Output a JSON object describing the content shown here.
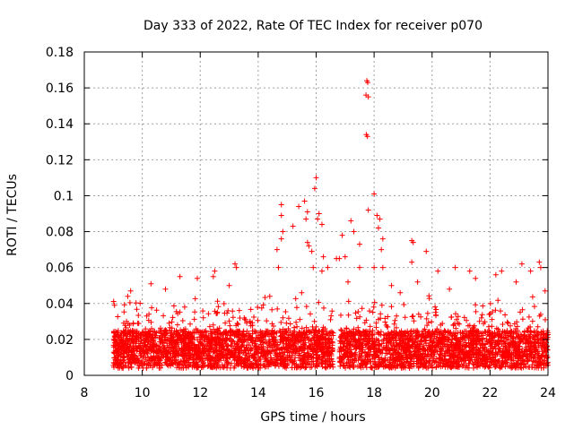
{
  "chart_data": {
    "type": "scatter",
    "title": "Day 333 of 2022, Rate Of TEC Index for receiver p070",
    "xlabel": "GPS time / hours",
    "ylabel": "ROTI / TECUs",
    "xlim": [
      8,
      24
    ],
    "ylim": [
      0,
      0.18
    ],
    "xticks": [
      "8",
      "10",
      "12",
      "14",
      "16",
      "18",
      "20",
      "22",
      "24"
    ],
    "yticks": [
      "0",
      "0.02",
      "0.04",
      "0.06",
      "0.08",
      "0.1",
      "0.12",
      "0.14",
      "0.16",
      "0.18"
    ],
    "grid": true,
    "marker": "+",
    "color": "#ff0000",
    "series": [
      {
        "name": "ROTI p070",
        "points": [
          [
            17.75,
            0.164
          ],
          [
            17.78,
            0.163
          ],
          [
            17.72,
            0.156
          ],
          [
            17.8,
            0.155
          ],
          [
            17.73,
            0.134
          ],
          [
            17.77,
            0.133
          ],
          [
            16.0,
            0.11
          ],
          [
            15.95,
            0.104
          ],
          [
            18.0,
            0.101
          ],
          [
            14.8,
            0.095
          ],
          [
            15.6,
            0.097
          ],
          [
            17.8,
            0.092
          ],
          [
            15.4,
            0.094
          ],
          [
            15.7,
            0.091
          ],
          [
            14.8,
            0.089
          ],
          [
            16.1,
            0.09
          ],
          [
            15.65,
            0.087
          ],
          [
            16.2,
            0.084
          ],
          [
            18.1,
            0.089
          ],
          [
            18.2,
            0.087
          ],
          [
            17.2,
            0.086
          ],
          [
            18.15,
            0.082
          ],
          [
            15.2,
            0.083
          ],
          [
            17.3,
            0.08
          ],
          [
            16.05,
            0.087
          ],
          [
            14.85,
            0.08
          ],
          [
            18.3,
            0.076
          ],
          [
            19.3,
            0.075
          ],
          [
            19.35,
            0.074
          ],
          [
            16.9,
            0.078
          ],
          [
            15.7,
            0.074
          ],
          [
            15.75,
            0.072
          ],
          [
            14.8,
            0.076
          ],
          [
            14.65,
            0.07
          ],
          [
            17.5,
            0.073
          ],
          [
            18.25,
            0.07
          ],
          [
            15.85,
            0.069
          ],
          [
            16.25,
            0.066
          ],
          [
            19.8,
            0.069
          ],
          [
            17.0,
            0.066
          ],
          [
            16.8,
            0.065
          ],
          [
            16.7,
            0.065
          ],
          [
            17.5,
            0.06
          ],
          [
            18.3,
            0.06
          ],
          [
            13.2,
            0.062
          ],
          [
            13.25,
            0.06
          ],
          [
            23.1,
            0.062
          ],
          [
            23.7,
            0.063
          ],
          [
            23.75,
            0.06
          ],
          [
            15.9,
            0.06
          ],
          [
            16.2,
            0.058
          ],
          [
            16.4,
            0.06
          ],
          [
            14.7,
            0.06
          ],
          [
            19.3,
            0.063
          ],
          [
            22.4,
            0.058
          ],
          [
            20.8,
            0.06
          ],
          [
            21.3,
            0.058
          ],
          [
            12.5,
            0.058
          ],
          [
            12.45,
            0.055
          ],
          [
            11.3,
            0.055
          ],
          [
            10.3,
            0.051
          ],
          [
            11.9,
            0.054
          ],
          [
            13.0,
            0.05
          ],
          [
            18.0,
            0.06
          ],
          [
            18.6,
            0.05
          ],
          [
            19.5,
            0.052
          ],
          [
            20.2,
            0.058
          ],
          [
            21.5,
            0.054
          ],
          [
            22.2,
            0.056
          ],
          [
            22.9,
            0.052
          ],
          [
            23.4,
            0.058
          ],
          [
            9.6,
            0.047
          ],
          [
            9.5,
            0.044
          ],
          [
            10.8,
            0.048
          ],
          [
            14.4,
            0.044
          ],
          [
            15.5,
            0.046
          ],
          [
            17.1,
            0.052
          ],
          [
            18.9,
            0.046
          ],
          [
            20.6,
            0.048
          ],
          [
            23.9,
            0.047
          ]
        ]
      }
    ]
  }
}
